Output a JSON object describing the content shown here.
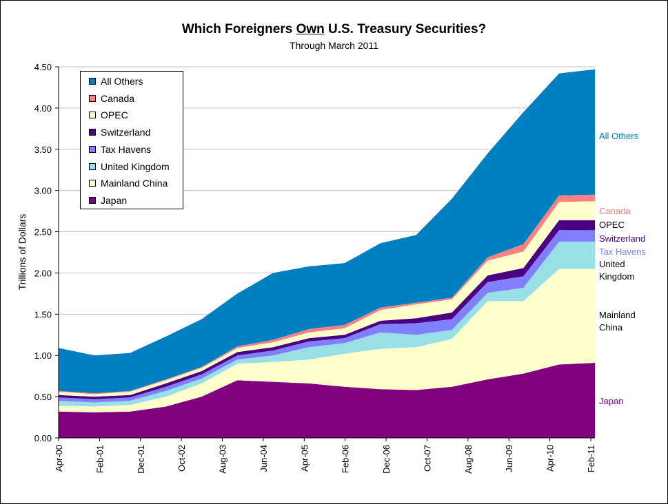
{
  "title_parts": {
    "pre": "Which Foreigners ",
    "emph": "Own",
    "post": " U.S. Treasury Securities?"
  },
  "subtitle": "Through March 2011",
  "chart_data": {
    "type": "area",
    "stacked": true,
    "title": "Which Foreigners Own U.S. Treasury Securities?",
    "subtitle": "Through March 2011",
    "xlabel": "",
    "ylabel": "Trillions of Dollars",
    "ylim": [
      0,
      4.5
    ],
    "yticks": [
      "0.00",
      "0.50",
      "1.00",
      "1.50",
      "2.00",
      "2.50",
      "3.00",
      "3.50",
      "4.00",
      "4.50"
    ],
    "xticks": [
      "Apr-00",
      "Feb-01",
      "Dec-01",
      "Oct-02",
      "Aug-03",
      "Jun-04",
      "Apr-05",
      "Feb-06",
      "Dec-06",
      "Oct-07",
      "Aug-08",
      "Jun-09",
      "Apr-10",
      "Feb-11"
    ],
    "x": [
      "Apr-00",
      "Feb-01",
      "Dec-01",
      "Oct-02",
      "Aug-03",
      "Jun-04",
      "Apr-05",
      "Feb-06",
      "Dec-06",
      "Oct-07",
      "Jun-08",
      "Aug-08",
      "Jun-09",
      "Apr-10",
      "Feb-11",
      "Mar-11"
    ],
    "grid": true,
    "legend_position": "top-left",
    "series": [
      {
        "name": "Japan",
        "color": "#800080",
        "values": [
          0.32,
          0.31,
          0.32,
          0.38,
          0.5,
          0.7,
          0.68,
          0.66,
          0.62,
          0.59,
          0.58,
          0.62,
          0.71,
          0.78,
          0.89,
          0.91
        ]
      },
      {
        "name": "Mainland China",
        "color": "#ffffcc",
        "values": [
          0.07,
          0.07,
          0.08,
          0.12,
          0.16,
          0.2,
          0.24,
          0.29,
          0.4,
          0.49,
          0.52,
          0.58,
          0.95,
          0.88,
          1.16,
          1.14
        ]
      },
      {
        "name": "United Kingdom",
        "color": "#99dfe6",
        "values": [
          0.06,
          0.05,
          0.05,
          0.07,
          0.06,
          0.05,
          0.08,
          0.15,
          0.13,
          0.2,
          0.15,
          0.11,
          0.1,
          0.16,
          0.33,
          0.33
        ]
      },
      {
        "name": "Tax Havens",
        "color": "#8080ff",
        "values": [
          0.04,
          0.04,
          0.04,
          0.05,
          0.05,
          0.05,
          0.06,
          0.07,
          0.06,
          0.1,
          0.14,
          0.13,
          0.13,
          0.14,
          0.14,
          0.14
        ]
      },
      {
        "name": "Switzerland",
        "color": "#4b0082",
        "values": [
          0.03,
          0.03,
          0.03,
          0.04,
          0.04,
          0.04,
          0.04,
          0.04,
          0.04,
          0.04,
          0.06,
          0.08,
          0.08,
          0.1,
          0.12,
          0.12
        ]
      },
      {
        "name": "OPEC",
        "color": "#ffffcc",
        "values": [
          0.04,
          0.03,
          0.04,
          0.04,
          0.04,
          0.05,
          0.06,
          0.07,
          0.08,
          0.13,
          0.17,
          0.16,
          0.18,
          0.2,
          0.22,
          0.23
        ]
      },
      {
        "name": "Canada",
        "color": "#ff8080",
        "values": [
          0.01,
          0.01,
          0.01,
          0.01,
          0.01,
          0.02,
          0.03,
          0.04,
          0.04,
          0.03,
          0.02,
          0.02,
          0.04,
          0.09,
          0.08,
          0.08
        ]
      },
      {
        "name": "All Others",
        "color": "#0080c0",
        "values": [
          0.52,
          0.46,
          0.46,
          0.52,
          0.58,
          0.64,
          0.81,
          0.76,
          0.75,
          0.78,
          0.82,
          1.2,
          1.26,
          1.6,
          1.48,
          1.52
        ]
      }
    ]
  },
  "legend": {
    "items": [
      {
        "label": "All Others",
        "color": "#0080c0"
      },
      {
        "label": "Canada",
        "color": "#ff8080"
      },
      {
        "label": "OPEC",
        "color": "#ffffcc"
      },
      {
        "label": "Switzerland",
        "color": "#4b0082"
      },
      {
        "label": "Tax Havens",
        "color": "#8080ff"
      },
      {
        "label": "United Kingdom",
        "color": "#99dfe6"
      },
      {
        "label": "Mainland China",
        "color": "#ffffcc"
      },
      {
        "label": "Japan",
        "color": "#800080"
      }
    ]
  },
  "right_labels": [
    {
      "lines": [
        "All Others"
      ],
      "color": "#0080c0"
    },
    {
      "lines": [
        "Canada"
      ],
      "color": "#ff8080"
    },
    {
      "lines": [
        "OPEC"
      ],
      "color": "#000000"
    },
    {
      "lines": [
        "Switzerland"
      ],
      "color": "#4b0082"
    },
    {
      "lines": [
        "Tax Havens"
      ],
      "color": "#8080ff"
    },
    {
      "lines": [
        "United",
        "Kingdom"
      ],
      "color": "#000000"
    },
    {
      "lines": [
        "Mainland",
        "China"
      ],
      "color": "#000000"
    },
    {
      "lines": [
        "Japan"
      ],
      "color": "#800080"
    }
  ]
}
